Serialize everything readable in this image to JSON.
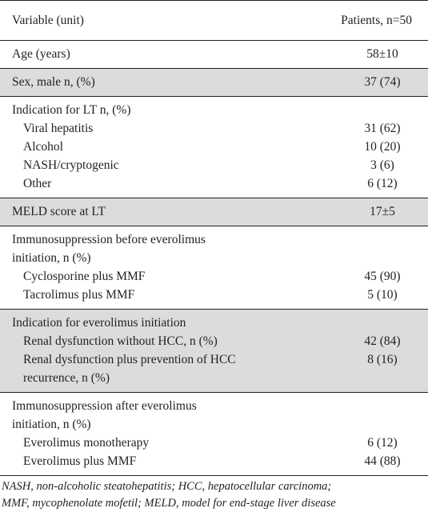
{
  "header": {
    "variable": "Variable (unit)",
    "patients": "Patients, n=50"
  },
  "rows": [
    {
      "lines": [
        {
          "text": "Age (years)",
          "value": "58±10"
        }
      ]
    },
    {
      "lines": [
        {
          "text": "Sex, male n, (%)",
          "value": "37 (74)"
        }
      ]
    },
    {
      "lines": [
        {
          "text": "Indication for LT n, (%)",
          "value": ""
        },
        {
          "text": "Viral hepatitis",
          "value": "31 (62)"
        },
        {
          "text": "Alcohol",
          "value": "10 (20)"
        },
        {
          "text": "NASH/cryptogenic",
          "value": "3 (6)"
        },
        {
          "text": "Other",
          "value": "6 (12)"
        }
      ]
    },
    {
      "lines": [
        {
          "text": "MELD score at LT",
          "value": "17±5"
        }
      ]
    },
    {
      "lines": [
        {
          "text": "Immunosuppression before everolimus",
          "value": ""
        },
        {
          "text": "initiation, n (%)",
          "value": ""
        },
        {
          "text": "Cyclosporine plus MMF",
          "value": "45 (90)"
        },
        {
          "text": "Tacrolimus plus MMF",
          "value": "5 (10)"
        }
      ]
    },
    {
      "lines": [
        {
          "text": "Indication for everolimus initiation",
          "value": ""
        },
        {
          "text": "Renal dysfunction without HCC, n (%)",
          "value": "42 (84)"
        },
        {
          "text": "Renal dysfunction plus prevention of HCC",
          "value": "8 (16)"
        },
        {
          "text": "recurrence, n (%)",
          "value": ""
        }
      ]
    },
    {
      "lines": [
        {
          "text": "Immunosuppression after everolimus",
          "value": ""
        },
        {
          "text": "initiation, n (%)",
          "value": ""
        },
        {
          "text": "Everolimus monotherapy",
          "value": "6 (12)"
        },
        {
          "text": "Everolimus plus MMF",
          "value": "44 (88)"
        }
      ]
    }
  ],
  "footnote": {
    "line1": "NASH, non-alcoholic steatohepatitis; HCC, hepatocellular carcinoma;",
    "line2": "MMF, mycophenolate mofetil; MELD, model for end-stage liver disease"
  }
}
